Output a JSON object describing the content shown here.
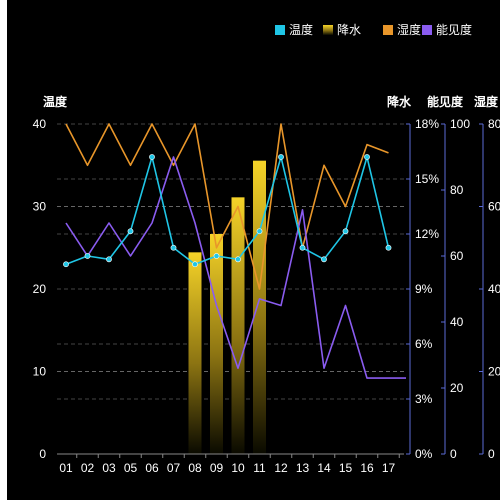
{
  "colors": {
    "temperature": "#1fc6e6",
    "precipitation_top": "#f5d328",
    "precipitation_bottom": "#0a0a00",
    "humidity": "#e8962a",
    "visibility": "#8a5cf0",
    "axis_text": "#ffffff",
    "grid": "#666666",
    "right_axis_line": "#5b6bd6"
  },
  "chart_data": {
    "type": "bar",
    "title": "",
    "categories": [
      "01",
      "02",
      "03",
      "05",
      "06",
      "07",
      "08",
      "09",
      "10",
      "11",
      "12",
      "13",
      "14",
      "15",
      "16",
      "17"
    ],
    "legend": {
      "position": "top-right",
      "items": [
        {
          "name": "温度",
          "color": "#1fc6e6"
        },
        {
          "name": "降水",
          "color": "#f5d328"
        },
        {
          "name": "湿度",
          "color": "#e8962a"
        },
        {
          "name": "能见度",
          "color": "#8a5cf0"
        }
      ]
    },
    "axes": {
      "left": {
        "label": "温度",
        "min": 0,
        "max": 40,
        "ticks": [
          "0",
          "10",
          "20",
          "30",
          "40"
        ]
      },
      "right1": {
        "label": "降水",
        "min": 0,
        "max": 18,
        "ticks": [
          "0%",
          "3%",
          "6%",
          "9%",
          "12%",
          "15%",
          "18%"
        ]
      },
      "right2": {
        "label": "能见度",
        "min": 0,
        "max": 100,
        "ticks": [
          "0",
          "20",
          "40",
          "60",
          "80",
          "100"
        ]
      },
      "right3": {
        "label": "湿度",
        "min": 0,
        "max": 80,
        "ticks": [
          "0",
          "20",
          "40",
          "60",
          "80"
        ]
      }
    },
    "grid": true,
    "series": [
      {
        "name": "温度",
        "type": "line",
        "axis": "left",
        "values": [
          23,
          24,
          23.6,
          27,
          36,
          25,
          23,
          24,
          23.6,
          27,
          36,
          25,
          23.6,
          27,
          36,
          25
        ]
      },
      {
        "name": "降水",
        "type": "bar",
        "axis": "right1",
        "values": [
          null,
          null,
          null,
          null,
          null,
          null,
          11,
          12,
          14,
          16,
          null,
          null,
          null,
          null,
          null,
          null
        ]
      },
      {
        "name": "湿度",
        "type": "line",
        "axis": "right3",
        "values": [
          80,
          70,
          80,
          70,
          80,
          70,
          80,
          50,
          60,
          40,
          80,
          50,
          70,
          60,
          75,
          73
        ]
      },
      {
        "name": "能见度",
        "type": "line",
        "axis": "right2",
        "values": [
          70,
          60,
          70,
          60,
          70,
          90,
          70,
          45,
          26,
          47,
          45,
          74,
          26,
          45,
          23,
          23
        ]
      }
    ]
  }
}
